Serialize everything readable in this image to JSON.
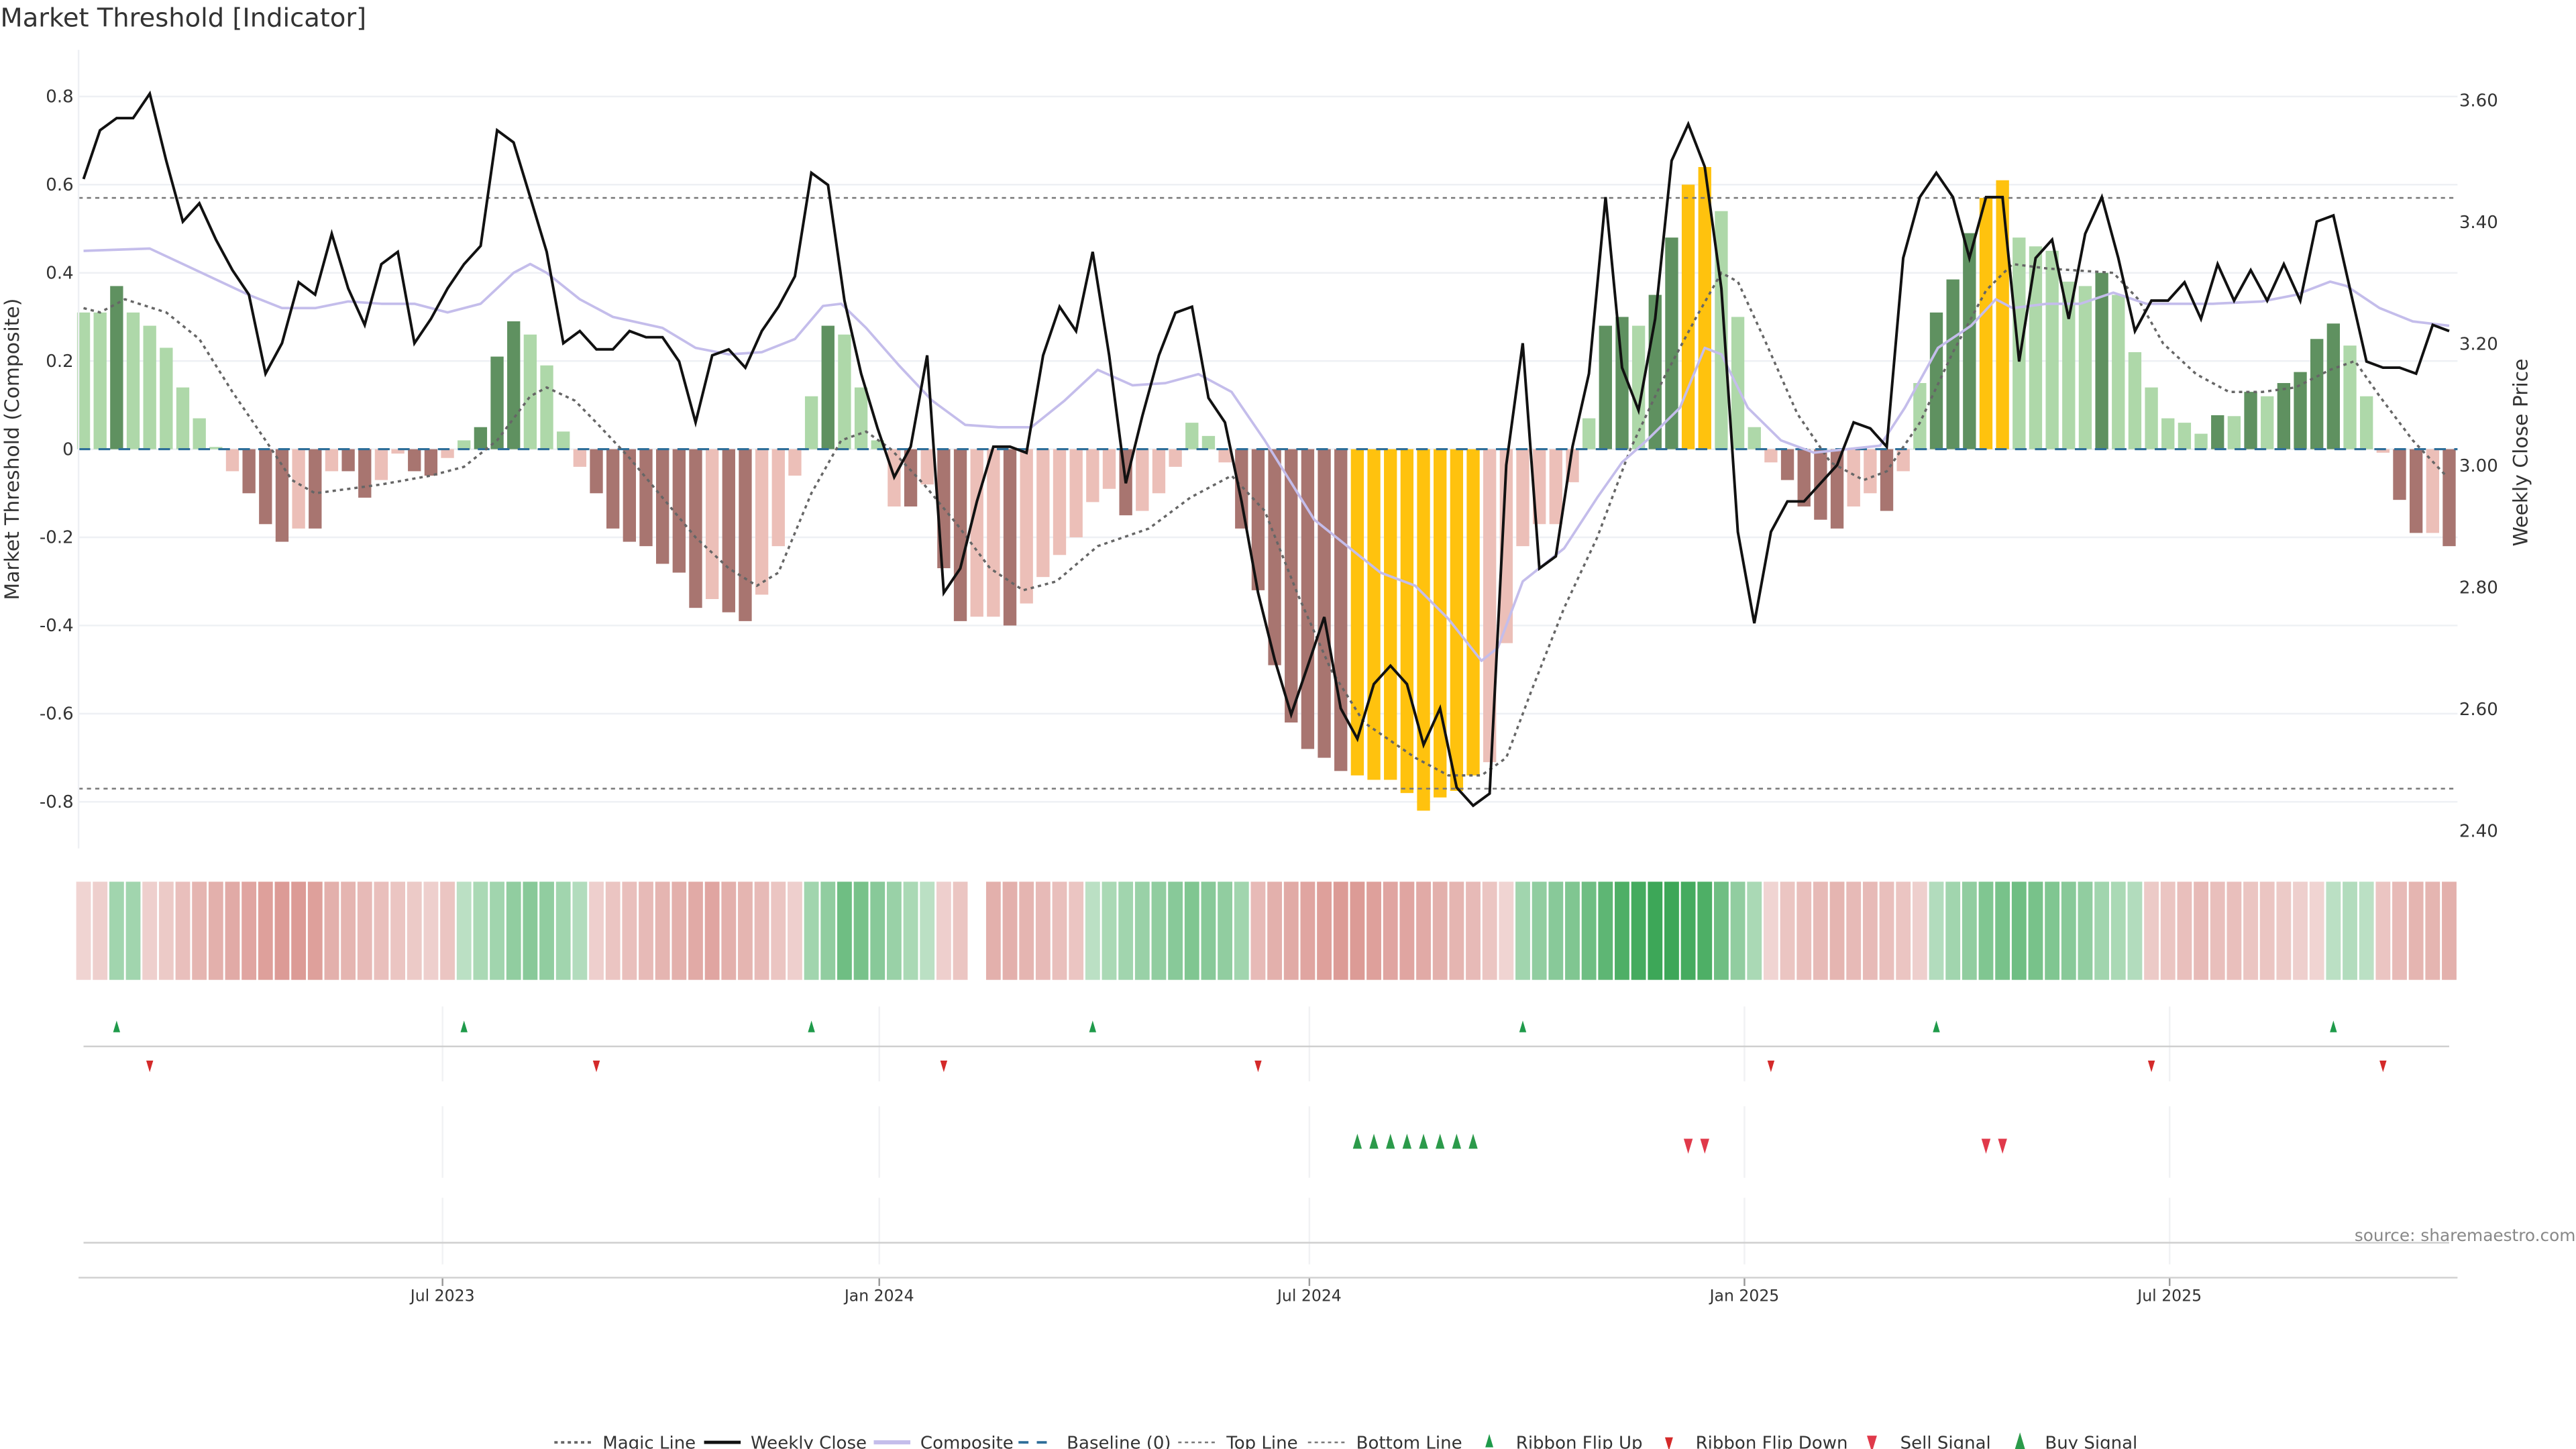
{
  "chart_data": {
    "type": "bar",
    "title": "Market Threshold [Indicator]",
    "ylabel": "Market Threshold (Composite)",
    "y2label": "Weekly Close Price",
    "source": "source: sharemaestro.com",
    "ylim": [
      -0.906,
      0.906
    ],
    "y2lim": [
      2.37,
      3.68
    ],
    "left_ticks": [
      "0.8",
      "0.6",
      "0.4",
      "0.2",
      "0",
      "-0.2",
      "-0.4",
      "-0.6",
      "-0.8"
    ],
    "left_tick_values": [
      0.8,
      0.6,
      0.4,
      0.2,
      0,
      -0.2,
      -0.4,
      -0.6,
      -0.8
    ],
    "right_ticks": [
      "3.60",
      "3.40",
      "3.20",
      "3.00",
      "2.80",
      "2.60",
      "2.40"
    ],
    "right_tick_values": [
      3.6,
      3.4,
      3.2,
      3.0,
      2.8,
      2.6,
      2.4
    ],
    "x_ticks": [
      {
        "label": "Jul 2023",
        "week": 21.7
      },
      {
        "label": "Jan 2024",
        "week": 48.1
      },
      {
        "label": "Jul 2024",
        "week": 74.1
      },
      {
        "label": "Jan 2025",
        "week": 100.4
      },
      {
        "label": "Jul 2025",
        "week": 126.1
      }
    ],
    "top_line": 0.57,
    "bottom_line": -0.77,
    "baseline": 0,
    "colors": {
      "L": "#aed8a9",
      "G": "#5f9160",
      "P": "#ecbfb8",
      "B": "#a87570",
      "Y": "#ffc20e",
      "close": "#111111",
      "composite": "#c4bdeb",
      "magic": "#666666",
      "baseline": "#2e6e99",
      "threshold": "#777777",
      "ribbon_up": "#3aa655",
      "ribbon_down": "#d4847e",
      "flip_up": "#1f9a4a",
      "flip_down": "#d42a2a",
      "sell": "#e0394a",
      "buy": "#2b9a4a"
    },
    "composite_values": [
      0.31,
      0.31,
      0.37,
      0.31,
      0.28,
      0.23,
      0.14,
      0.07,
      0.005,
      -0.05,
      -0.1,
      -0.17,
      -0.21,
      -0.18,
      -0.18,
      -0.05,
      -0.05,
      -0.11,
      -0.07,
      -0.01,
      -0.05,
      -0.06,
      -0.02,
      0.02,
      0.05,
      0.21,
      0.29,
      0.26,
      0.19,
      0.04,
      -0.04,
      -0.1,
      -0.18,
      -0.21,
      -0.22,
      -0.26,
      -0.28,
      -0.36,
      -0.34,
      -0.37,
      -0.39,
      -0.33,
      -0.22,
      -0.06,
      0.12,
      0.28,
      0.26,
      0.14,
      0.02,
      -0.13,
      -0.13,
      -0.08,
      -0.27,
      -0.39,
      -0.38,
      -0.38,
      -0.4,
      -0.35,
      -0.29,
      -0.24,
      -0.2,
      -0.12,
      -0.09,
      -0.15,
      -0.14,
      -0.1,
      -0.04,
      0.06,
      0.03,
      -0.03,
      -0.18,
      -0.32,
      -0.49,
      -0.62,
      -0.68,
      -0.7,
      -0.73,
      -0.74,
      -0.75,
      -0.75,
      -0.78,
      -0.82,
      -0.79,
      -0.775,
      -0.74,
      -0.71,
      -0.44,
      -0.22,
      -0.17,
      -0.17,
      -0.075,
      0.07,
      0.28,
      0.3,
      0.28,
      0.35,
      0.48,
      0.6,
      0.64,
      0.54,
      0.3,
      0.05,
      -0.03,
      -0.07,
      -0.13,
      -0.16,
      -0.18,
      -0.13,
      -0.1,
      -0.14,
      -0.05,
      0.15,
      0.31,
      0.385,
      0.49,
      0.57,
      0.61,
      0.48,
      0.46,
      0.45,
      0.38,
      0.37,
      0.4,
      0.35,
      0.22,
      0.14,
      0.07,
      0.06,
      0.035,
      0.077,
      0.075,
      0.13,
      0.12,
      0.15,
      0.175,
      0.25,
      0.285,
      0.235,
      0.12,
      -0.008,
      -0.115,
      -0.19,
      -0.19,
      -0.22
    ],
    "composite_class": [
      "L",
      "L",
      "G",
      "L",
      "L",
      "L",
      "L",
      "L",
      "L",
      "P",
      "B",
      "B",
      "B",
      "P",
      "B",
      "P",
      "B",
      "B",
      "P",
      "P",
      "B",
      "B",
      "P",
      "L",
      "G",
      "G",
      "G",
      "L",
      "L",
      "L",
      "P",
      "B",
      "B",
      "B",
      "B",
      "B",
      "B",
      "B",
      "P",
      "B",
      "B",
      "P",
      "P",
      "P",
      "L",
      "G",
      "L",
      "L",
      "L",
      "P",
      "B",
      "P",
      "B",
      "B",
      "P",
      "P",
      "B",
      "P",
      "P",
      "P",
      "P",
      "P",
      "P",
      "B",
      "P",
      "P",
      "P",
      "L",
      "L",
      "P",
      "B",
      "B",
      "B",
      "B",
      "B",
      "B",
      "B",
      "Y",
      "Y",
      "Y",
      "Y",
      "Y",
      "Y",
      "Y",
      "Y",
      "P",
      "P",
      "P",
      "P",
      "P",
      "P",
      "L",
      "G",
      "G",
      "L",
      "G",
      "G",
      "Y",
      "Y",
      "L",
      "L",
      "L",
      "P",
      "B",
      "B",
      "B",
      "B",
      "P",
      "P",
      "B",
      "P",
      "L",
      "G",
      "G",
      "G",
      "Y",
      "Y",
      "L",
      "L",
      "L",
      "L",
      "L",
      "G",
      "L",
      "L",
      "L",
      "L",
      "L",
      "L",
      "G",
      "L",
      "G",
      "L",
      "G",
      "G",
      "G",
      "G",
      "L",
      "L",
      "P",
      "B",
      "B",
      "P",
      "B"
    ],
    "weekly_close": [
      3.47,
      3.55,
      3.57,
      3.57,
      3.61,
      3.5,
      3.4,
      3.43,
      3.37,
      3.32,
      3.28,
      3.15,
      3.2,
      3.3,
      3.28,
      3.38,
      3.29,
      3.23,
      3.33,
      3.35,
      3.2,
      3.24,
      3.29,
      3.33,
      3.36,
      3.55,
      3.53,
      3.44,
      3.35,
      3.2,
      3.22,
      3.19,
      3.19,
      3.22,
      3.21,
      3.21,
      3.17,
      3.07,
      3.18,
      3.19,
      3.16,
      3.22,
      3.26,
      3.31,
      3.48,
      3.46,
      3.27,
      3.15,
      3.06,
      2.98,
      3.03,
      3.18,
      2.79,
      2.83,
      2.94,
      3.03,
      3.03,
      3.02,
      3.18,
      3.26,
      3.22,
      3.35,
      3.18,
      2.97,
      3.08,
      3.18,
      3.25,
      3.26,
      3.11,
      3.07,
      2.94,
      2.79,
      2.68,
      2.59,
      2.67,
      2.75,
      2.6,
      2.55,
      2.64,
      2.67,
      2.64,
      2.54,
      2.6,
      2.47,
      2.44,
      2.46,
      3.0,
      3.2,
      2.83,
      2.85,
      3.03,
      3.15,
      3.44,
      3.16,
      3.09,
      3.24,
      3.5,
      3.56,
      3.49,
      3.29,
      2.89,
      2.74,
      2.89,
      2.94,
      2.94,
      2.97,
      3.0,
      3.07,
      3.06,
      3.03,
      3.34,
      3.44,
      3.48,
      3.44,
      3.34,
      3.44,
      3.44,
      3.17,
      3.34,
      3.37,
      3.24,
      3.38,
      3.44,
      3.34,
      3.22,
      3.27,
      3.27,
      3.3,
      3.24,
      3.33,
      3.27,
      3.32,
      3.27,
      3.33,
      3.27,
      3.4,
      3.41,
      3.29,
      3.17,
      3.16,
      3.16,
      3.15,
      3.23,
      3.22
    ],
    "composite_line": {
      "week": [
        0,
        4,
        6,
        10,
        12,
        14,
        16,
        18,
        20,
        22,
        24,
        26,
        27,
        28,
        30,
        32,
        35,
        37,
        39,
        41,
        43,
        44.7,
        45.8,
        47.3,
        49.3,
        51.3,
        53.3,
        55.3,
        57.3,
        59.3,
        61.3,
        63.4,
        65.4,
        67.4,
        69.4,
        71.4,
        74.4,
        76.4,
        78.4,
        80.5,
        82.5,
        84.5,
        85.5,
        87,
        89.5,
        91.5,
        93,
        94.5,
        96.5,
        98,
        99,
        100.6,
        102.6,
        104.6,
        106.6,
        108.6,
        110.1,
        112.1,
        114.1,
        115.6,
        116.6,
        118.7,
        120.7,
        122.7,
        124.7,
        126.7,
        128.7,
        131.7,
        133.7,
        135.8,
        136.8,
        138.8,
        140.8,
        143
      ],
      "value": [
        0.45,
        0.455,
        0.42,
        0.35,
        0.32,
        0.32,
        0.335,
        0.33,
        0.33,
        0.31,
        0.33,
        0.4,
        0.42,
        0.4,
        0.34,
        0.3,
        0.275,
        0.23,
        0.215,
        0.22,
        0.25,
        0.325,
        0.33,
        0.275,
        0.19,
        0.11,
        0.055,
        0.05,
        0.05,
        0.11,
        0.18,
        0.145,
        0.15,
        0.17,
        0.13,
        0.02,
        -0.16,
        -0.22,
        -0.28,
        -0.31,
        -0.385,
        -0.48,
        -0.45,
        -0.3,
        -0.225,
        -0.11,
        -0.03,
        0.02,
        0.094,
        0.23,
        0.215,
        0.094,
        0.02,
        -0.008,
        0,
        0.008,
        0.094,
        0.23,
        0.28,
        0.34,
        0.32,
        0.33,
        0.33,
        0.355,
        0.33,
        0.33,
        0.33,
        0.335,
        0.35,
        0.38,
        0.37,
        0.32,
        0.29,
        0.28
      ]
    },
    "magic_line": {
      "week": [
        0,
        1,
        2.5,
        5,
        7,
        9,
        11,
        12.6,
        14,
        16,
        18,
        21,
        23,
        25,
        27,
        28,
        29.7,
        31,
        33,
        35,
        37,
        39,
        40.7,
        42,
        44,
        45.8,
        47.3,
        48.8,
        50.8,
        52.8,
        54.8,
        56.8,
        58.8,
        61.3,
        64.4,
        66.9,
        69.4,
        71.4,
        73.4,
        75.4,
        77.4,
        80.5,
        82.5,
        84.5,
        86,
        87.5,
        89.5,
        91.5,
        93.5,
        95.5,
        97.5,
        99,
        100,
        101.6,
        103.6,
        105.6,
        107.6,
        109,
        111,
        113,
        115,
        116.6,
        118.7,
        122.7,
        124.2,
        125.7,
        127.7,
        129.7,
        131.7,
        133.7,
        135.8,
        137.3,
        138.8,
        140.8,
        142.8
      ],
      "value": [
        0.32,
        0.31,
        0.34,
        0.31,
        0.25,
        0.13,
        0.02,
        -0.07,
        -0.1,
        -0.09,
        -0.08,
        -0.06,
        -0.04,
        0.02,
        0.12,
        0.14,
        0.11,
        0.06,
        -0.02,
        -0.11,
        -0.2,
        -0.27,
        -0.31,
        -0.28,
        -0.1,
        0.02,
        0.04,
        0.0,
        -0.08,
        -0.17,
        -0.27,
        -0.32,
        -0.3,
        -0.22,
        -0.18,
        -0.11,
        -0.06,
        -0.14,
        -0.33,
        -0.5,
        -0.62,
        -0.7,
        -0.74,
        -0.74,
        -0.7,
        -0.55,
        -0.36,
        -0.2,
        0.0,
        0.16,
        0.3,
        0.4,
        0.38,
        0.25,
        0.08,
        -0.03,
        -0.07,
        -0.05,
        0.06,
        0.22,
        0.36,
        0.42,
        0.41,
        0.4,
        0.34,
        0.24,
        0.17,
        0.13,
        0.13,
        0.14,
        0.18,
        0.2,
        0.12,
        0.02,
        -0.06
      ]
    },
    "ribbon": [
      -0.15,
      -0.2,
      0.3,
      0.3,
      -0.2,
      -0.25,
      -0.35,
      -0.45,
      -0.5,
      -0.55,
      -0.6,
      -0.65,
      -0.7,
      -0.7,
      -0.65,
      -0.5,
      -0.45,
      -0.4,
      -0.35,
      -0.3,
      -0.25,
      -0.2,
      -0.3,
      0.15,
      0.25,
      0.3,
      0.4,
      0.45,
      0.4,
      0.3,
      0.2,
      -0.2,
      -0.3,
      -0.35,
      -0.4,
      -0.45,
      -0.5,
      -0.55,
      -0.6,
      -0.5,
      -0.45,
      -0.4,
      -0.3,
      -0.2,
      0.3,
      0.4,
      0.6,
      0.55,
      0.45,
      0.35,
      0.25,
      0.15,
      -0.2,
      -0.3,
      null,
      -0.5,
      -0.5,
      -0.45,
      -0.4,
      -0.35,
      -0.3,
      0.15,
      0.25,
      0.3,
      0.35,
      0.4,
      0.45,
      0.5,
      0.45,
      0.4,
      0.3,
      -0.4,
      -0.5,
      -0.55,
      -0.6,
      -0.65,
      -0.7,
      -0.7,
      -0.65,
      -0.6,
      -0.6,
      -0.55,
      -0.5,
      -0.45,
      -0.4,
      -0.3,
      -0.15,
      0.3,
      0.4,
      0.45,
      0.5,
      0.6,
      0.7,
      0.8,
      0.85,
      0.9,
      0.9,
      0.85,
      0.8,
      0.6,
      0.4,
      0.25,
      -0.15,
      -0.3,
      -0.35,
      -0.4,
      -0.45,
      -0.4,
      -0.4,
      -0.35,
      -0.3,
      -0.2,
      0.2,
      0.3,
      0.4,
      0.5,
      0.55,
      0.6,
      0.55,
      0.5,
      0.45,
      0.4,
      0.3,
      0.25,
      0.2,
      -0.25,
      -0.3,
      -0.35,
      -0.4,
      -0.35,
      -0.35,
      -0.3,
      -0.3,
      -0.25,
      -0.2,
      -0.15,
      0.15,
      0.2,
      0.15,
      -0.3,
      -0.4,
      -0.45,
      -0.45,
      -0.5
    ],
    "ribbon_flip_up_weeks": [
      2,
      23,
      44,
      61,
      87,
      112,
      136
    ],
    "ribbon_flip_down_weeks": [
      4,
      31,
      52,
      71,
      102,
      125,
      139
    ],
    "buy_signal_weeks": [
      77,
      78,
      79,
      80,
      81,
      82,
      83,
      84
    ],
    "sell_signal_weeks": [
      97,
      98,
      115,
      116
    ],
    "legend": [
      {
        "label": "Magic Line",
        "kind": "dotted",
        "color": "magic"
      },
      {
        "label": "Weekly Close",
        "kind": "solid",
        "color": "close"
      },
      {
        "label": "Composite",
        "kind": "thick",
        "color": "composite"
      },
      {
        "label": "Baseline (0)",
        "kind": "dashed",
        "color": "baseline"
      },
      {
        "label": "Top Line",
        "kind": "dotted-light",
        "color": "threshold"
      },
      {
        "label": "Bottom Line",
        "kind": "dotted-light",
        "color": "threshold"
      },
      {
        "label": "Ribbon Flip Up",
        "kind": "up",
        "color": "flip_up"
      },
      {
        "label": "Ribbon Flip Down",
        "kind": "down",
        "color": "flip_down"
      },
      {
        "label": "Sell Signal",
        "kind": "down-big",
        "color": "sell"
      },
      {
        "label": "Buy Signal",
        "kind": "up-big",
        "color": "buy"
      }
    ],
    "legend_placement": "bottom-center"
  }
}
